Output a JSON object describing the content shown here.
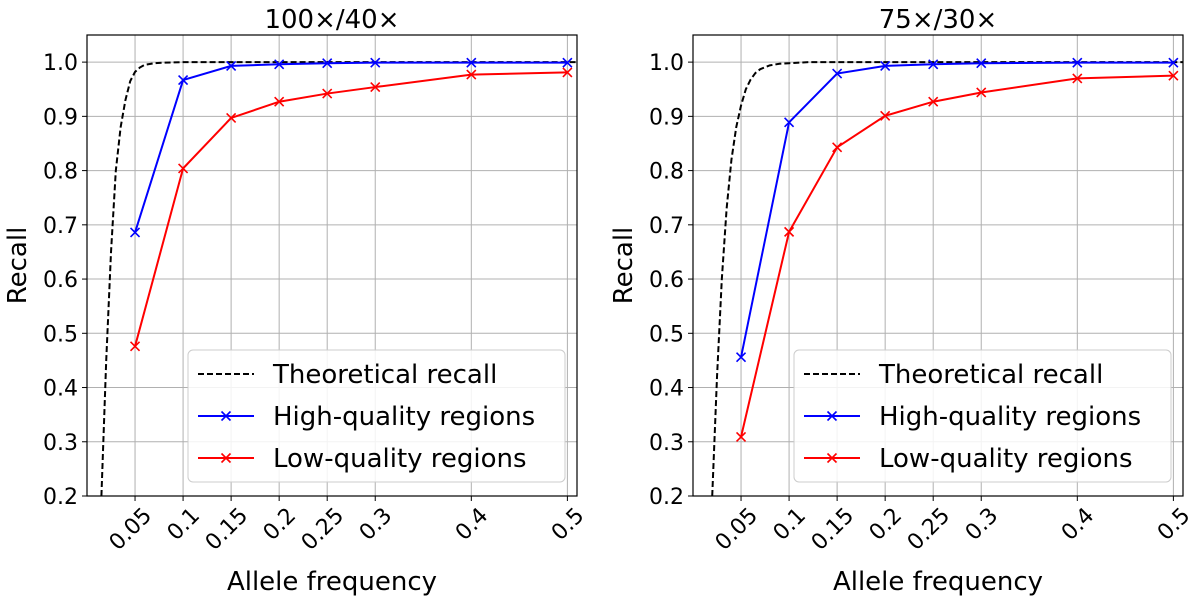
{
  "chart_data": [
    {
      "type": "line",
      "title": "100×/40×",
      "xlabel": "Allele frequency",
      "ylabel": "Recall",
      "xlim": [
        0.0,
        0.51
      ],
      "ylim": [
        0.2,
        1.05
      ],
      "xticks": [
        0.05,
        0.1,
        0.15,
        0.2,
        0.25,
        0.3,
        0.4,
        0.5
      ],
      "xtick_labels": [
        "0.05",
        "0.1",
        "0.15",
        "0.2",
        "0.25",
        "0.3",
        "0.4",
        "0.5"
      ],
      "yticks": [
        0.2,
        0.3,
        0.4,
        0.5,
        0.6,
        0.7,
        0.8,
        0.9,
        1.0
      ],
      "ytick_labels": [
        "0.2",
        "0.3",
        "0.4",
        "0.5",
        "0.6",
        "0.7",
        "0.8",
        "0.9",
        "1.0"
      ],
      "grid": true,
      "legend_position": "lower-right",
      "series": [
        {
          "name": "Theoretical recall",
          "color": "#000000",
          "style": "dashed",
          "marker": "none",
          "x": [
            0.015,
            0.02,
            0.025,
            0.03,
            0.035,
            0.04,
            0.045,
            0.05,
            0.055,
            0.06,
            0.07,
            0.08,
            0.1,
            0.15,
            0.2,
            0.3,
            0.4,
            0.5,
            0.51
          ],
          "y": [
            0.2,
            0.45,
            0.65,
            0.8,
            0.88,
            0.93,
            0.965,
            0.982,
            0.99,
            0.995,
            0.998,
            0.999,
            1.0,
            1.0,
            1.0,
            1.0,
            1.0,
            1.0,
            1.0
          ]
        },
        {
          "name": "High-quality regions",
          "color": "#0000ff",
          "style": "solid",
          "marker": "x",
          "x": [
            0.05,
            0.1,
            0.15,
            0.2,
            0.25,
            0.3,
            0.4,
            0.5
          ],
          "y": [
            0.686,
            0.967,
            0.993,
            0.996,
            0.998,
            0.999,
            0.999,
            0.999
          ]
        },
        {
          "name": "Low-quality regions",
          "color": "#ff0000",
          "style": "solid",
          "marker": "x",
          "x": [
            0.05,
            0.1,
            0.15,
            0.2,
            0.25,
            0.3,
            0.4,
            0.5
          ],
          "y": [
            0.476,
            0.804,
            0.897,
            0.927,
            0.942,
            0.954,
            0.977,
            0.981
          ]
        }
      ]
    },
    {
      "type": "line",
      "title": "75×/30×",
      "xlabel": "Allele frequency",
      "ylabel": "Recall",
      "xlim": [
        0.0,
        0.51
      ],
      "ylim": [
        0.2,
        1.05
      ],
      "xticks": [
        0.05,
        0.1,
        0.15,
        0.2,
        0.25,
        0.3,
        0.4,
        0.5
      ],
      "xtick_labels": [
        "0.05",
        "0.1",
        "0.15",
        "0.2",
        "0.25",
        "0.3",
        "0.4",
        "0.5"
      ],
      "yticks": [
        0.2,
        0.3,
        0.4,
        0.5,
        0.6,
        0.7,
        0.8,
        0.9,
        1.0
      ],
      "ytick_labels": [
        "0.2",
        "0.3",
        "0.4",
        "0.5",
        "0.6",
        "0.7",
        "0.8",
        "0.9",
        "1.0"
      ],
      "grid": true,
      "legend_position": "lower-right",
      "series": [
        {
          "name": "Theoretical recall",
          "color": "#000000",
          "style": "dashed",
          "marker": "none",
          "x": [
            0.02,
            0.025,
            0.03,
            0.035,
            0.04,
            0.045,
            0.05,
            0.055,
            0.06,
            0.065,
            0.07,
            0.08,
            0.09,
            0.1,
            0.12,
            0.15,
            0.2,
            0.3,
            0.4,
            0.5,
            0.51
          ],
          "y": [
            0.2,
            0.42,
            0.6,
            0.73,
            0.82,
            0.88,
            0.92,
            0.95,
            0.968,
            0.98,
            0.987,
            0.994,
            0.997,
            0.998,
            1.0,
            1.0,
            1.0,
            1.0,
            1.0,
            1.0,
            1.0
          ]
        },
        {
          "name": "High-quality regions",
          "color": "#0000ff",
          "style": "solid",
          "marker": "x",
          "x": [
            0.05,
            0.1,
            0.15,
            0.2,
            0.25,
            0.3,
            0.4,
            0.5
          ],
          "y": [
            0.456,
            0.889,
            0.979,
            0.993,
            0.996,
            0.998,
            0.999,
            0.999
          ]
        },
        {
          "name": "Low-quality regions",
          "color": "#ff0000",
          "style": "solid",
          "marker": "x",
          "x": [
            0.05,
            0.1,
            0.15,
            0.2,
            0.25,
            0.3,
            0.4,
            0.5
          ],
          "y": [
            0.309,
            0.687,
            0.843,
            0.901,
            0.927,
            0.944,
            0.97,
            0.975
          ]
        }
      ]
    }
  ]
}
